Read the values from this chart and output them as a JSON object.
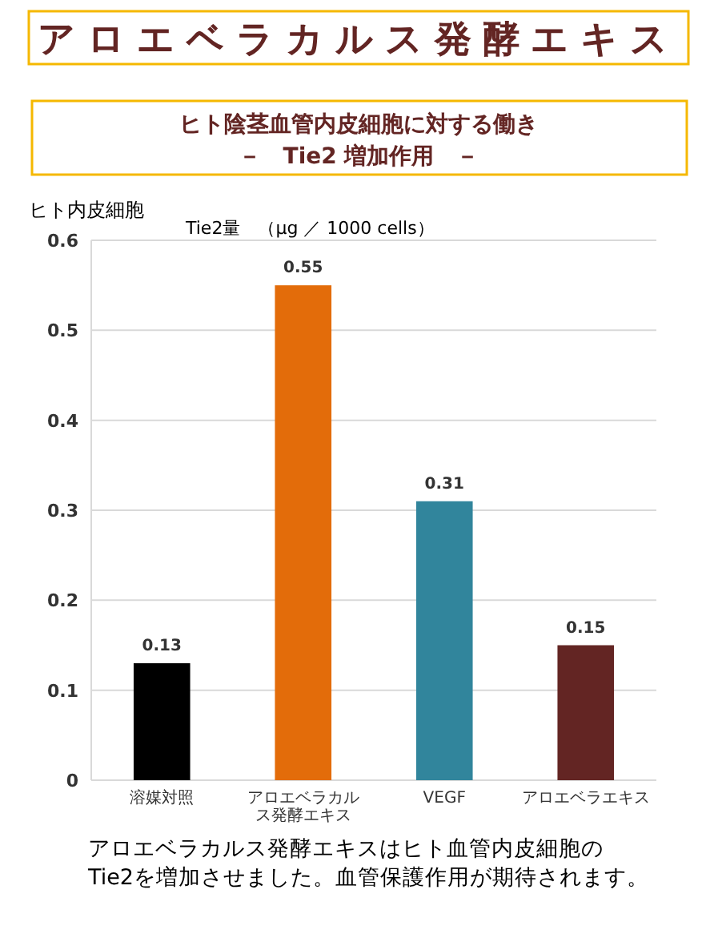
{
  "chart_data": {
    "type": "bar",
    "title": "アロエベラカルス発酵エキス",
    "subtitle": "ヒト陰茎血管内皮細胞に対する働き－　Tie2 増加作用　－",
    "ylabel": "ヒト内皮細胞\nTie2量　（μg ／ 1000 cells）",
    "categories": [
      "溶媒対照",
      "アロエベラカルス発酵エキス",
      "VEGF",
      "アロエベラエキス"
    ],
    "values": [
      0.13,
      0.55,
      0.31,
      0.15
    ],
    "colors": [
      "#000000",
      "#e36c0a",
      "#31859c",
      "#632523"
    ],
    "ylim": [
      0,
      0.6
    ],
    "yticks": [
      0,
      0.1,
      0.2,
      0.3,
      0.4,
      0.5,
      0.6
    ],
    "grid": "y",
    "data_labels": true,
    "annotations": [
      "アロエベラカルス発酵エキスはヒト血管内皮細胞の\nTie2を増加させました。血管保護作用が期待されます。"
    ]
  }
}
